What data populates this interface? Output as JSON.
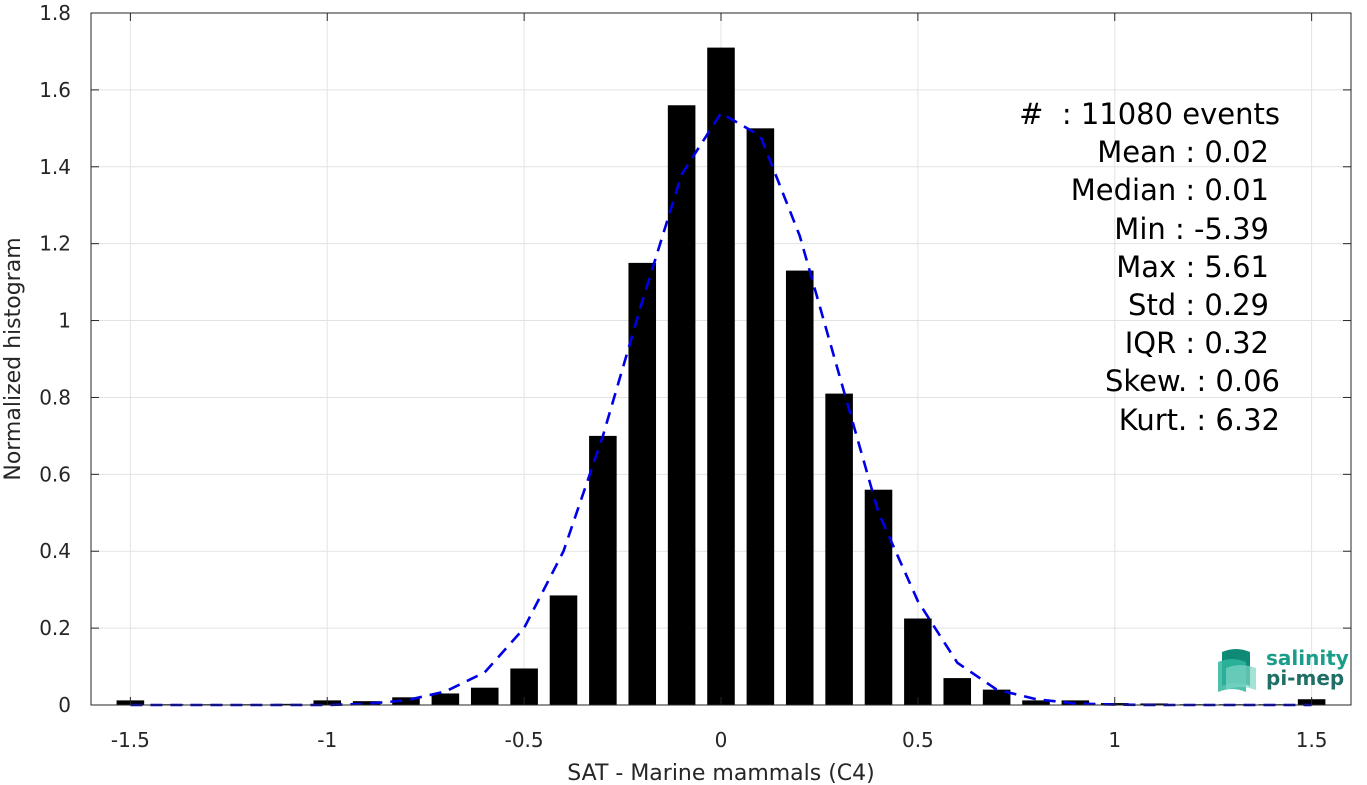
{
  "chart_data": {
    "type": "bar",
    "title": "",
    "xlabel": "SAT - Marine mammals (C4)",
    "ylabel": "Normalized histogram",
    "xlim": [
      -1.6,
      1.6
    ],
    "ylim": [
      0,
      1.8
    ],
    "xticks": [
      -1.5,
      -1,
      -0.5,
      0,
      0.5,
      1,
      1.5
    ],
    "xtick_labels": [
      "-1.5",
      "-1",
      "-0.5",
      "0",
      "0.5",
      "1",
      "1.5"
    ],
    "yticks": [
      0,
      0.2,
      0.4,
      0.6,
      0.8,
      1,
      1.2,
      1.4,
      1.6,
      1.8
    ],
    "ytick_labels": [
      "0",
      "0.2",
      "0.4",
      "0.6",
      "0.8",
      "1",
      "1.2",
      "1.4",
      "1.6",
      "1.8"
    ],
    "grid": true,
    "bar_color": "#000000",
    "bin_width": 0.1,
    "bars": {
      "x": [
        -1.5,
        -1.4,
        -1.3,
        -1.2,
        -1.1,
        -1.0,
        -0.9,
        -0.8,
        -0.7,
        -0.6,
        -0.5,
        -0.4,
        -0.3,
        -0.2,
        -0.1,
        0.0,
        0.1,
        0.2,
        0.3,
        0.4,
        0.5,
        0.6,
        0.7,
        0.8,
        0.9,
        1.0,
        1.1,
        1.2,
        1.3,
        1.4,
        1.5
      ],
      "y": [
        0.012,
        0.002,
        0.002,
        0.002,
        0.003,
        0.012,
        0.01,
        0.02,
        0.03,
        0.045,
        0.095,
        0.285,
        0.7,
        1.15,
        1.56,
        1.71,
        1.5,
        1.13,
        0.81,
        0.56,
        0.225,
        0.07,
        0.04,
        0.012,
        0.012,
        0.005,
        0.004,
        0.002,
        0.002,
        0.002,
        0.015
      ]
    },
    "fit_curve": {
      "style": "dashed",
      "color": "#0000e6",
      "x": [
        -1.5,
        -1.4,
        -1.3,
        -1.2,
        -1.1,
        -1.0,
        -0.9,
        -0.8,
        -0.7,
        -0.6,
        -0.5,
        -0.4,
        -0.3,
        -0.2,
        -0.1,
        0.0,
        0.1,
        0.2,
        0.3,
        0.4,
        0.5,
        0.6,
        0.7,
        0.8,
        0.9,
        1.0,
        1.1,
        1.2,
        1.3,
        1.4,
        1.5
      ],
      "y": [
        0.0,
        0.0,
        0.0,
        0.0,
        0.0,
        0.0,
        0.003,
        0.012,
        0.035,
        0.085,
        0.2,
        0.4,
        0.7,
        1.05,
        1.38,
        1.54,
        1.48,
        1.22,
        0.86,
        0.5,
        0.27,
        0.11,
        0.04,
        0.015,
        0.004,
        0.001,
        0.0,
        0.0,
        0.0,
        0.0,
        0.0
      ]
    }
  },
  "stats": [
    {
      "label": "#  : 11080 events",
      "indent": 0
    },
    {
      "label": "Mean : 0.02",
      "indent": 1
    },
    {
      "label": "Median : 0.01",
      "indent": 1
    },
    {
      "label": "Min : -5.39",
      "indent": 1
    },
    {
      "label": "Max : 5.61",
      "indent": 1
    },
    {
      "label": "Std : 0.29",
      "indent": 1
    },
    {
      "label": "IQR : 0.32",
      "indent": 1
    },
    {
      "label": "Skew. : 0.06",
      "indent": 0
    },
    {
      "label": "Kurt. : 6.32",
      "indent": 0
    }
  ],
  "logo": {
    "line1": "salinity",
    "line2": "pi-mep",
    "icon": "salinity-waves-icon",
    "color": "#1a9e8a"
  }
}
